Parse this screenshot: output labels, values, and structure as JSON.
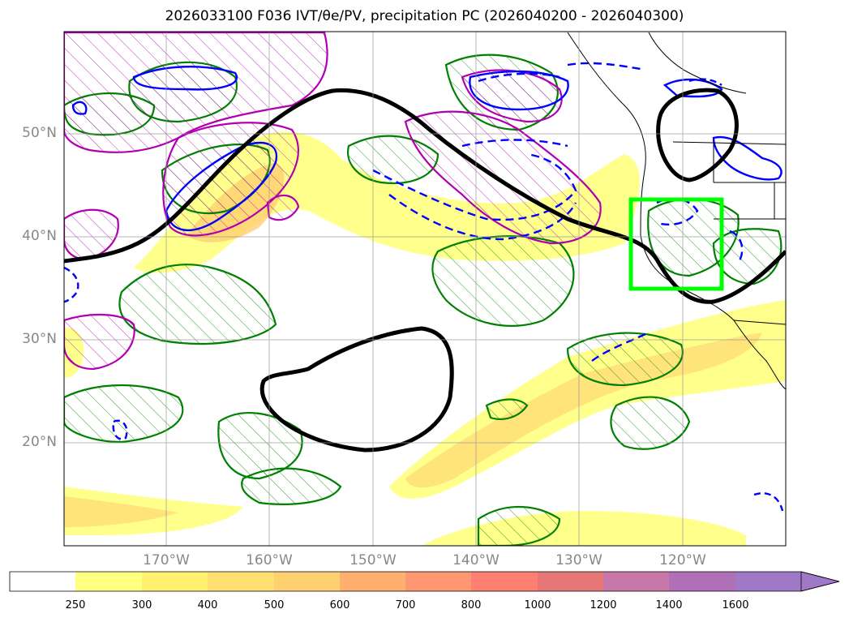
{
  "title": "2026033100 F036 IVT/θe/PV, precipitation PC (2026040200 - 2026040300)",
  "map": {
    "lat_labels": [
      "50°N",
      "40°N",
      "30°N",
      "20°N"
    ],
    "lon_labels": [
      "170°W",
      "160°W",
      "150°W",
      "140°W",
      "130°W",
      "120°W"
    ]
  },
  "colorbar": {
    "labels": [
      "250",
      "300",
      "400",
      "500",
      "600",
      "700",
      "800",
      "1000",
      "1200",
      "1400",
      "1600"
    ],
    "colors": [
      "#ffffff",
      "#ffff80",
      "#fff070",
      "#ffe070",
      "#ffd070",
      "#ffb070",
      "#ff9870",
      "#ff8070",
      "#e87878",
      "#c878a8",
      "#b070b8",
      "#a078c8"
    ]
  },
  "colors": {
    "ivt_fill": "#fff070",
    "pv_contour": "#008000",
    "theta_contour": "#b000b0",
    "neg_contour": "#0000ff",
    "jet_contour": "#000000",
    "box": "#00ff00"
  }
}
